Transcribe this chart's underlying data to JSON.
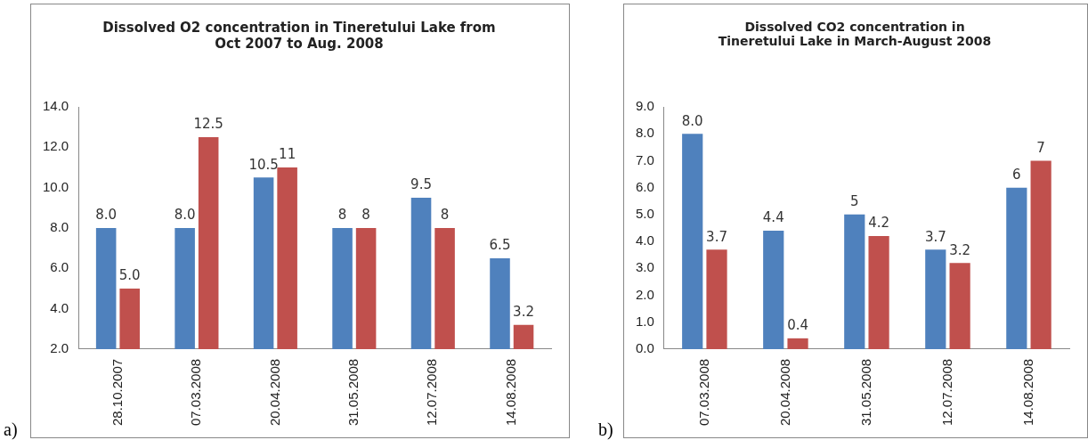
{
  "chart_data": [
    {
      "type": "bar",
      "title": "Dissolved  O2  concentration in Tineretului Lake from Oct 2007 to Aug. 2008",
      "categories": [
        "28.10.2007",
        "07.03.2008",
        "20.04.2008",
        "31.05.2008",
        "12.07.2008",
        "14.08.2008"
      ],
      "series": [
        {
          "color": "#4f81bd",
          "values": [
            8,
            8,
            10.5,
            8,
            9.5,
            6.5
          ],
          "value_labels": [
            "8.0",
            "8.0",
            "10.5",
            "8",
            "9.5",
            "6.5"
          ]
        },
        {
          "color": "#c0504d",
          "values": [
            5,
            12.5,
            11,
            8,
            8,
            3.2
          ],
          "value_labels": [
            "5.0",
            "12.5",
            "11",
            "8",
            "8",
            "3.2"
          ]
        }
      ],
      "ylim": [
        2,
        14
      ],
      "yticks": [
        {
          "value": 2,
          "label": "2.0"
        },
        {
          "value": 4,
          "label": "4.0"
        },
        {
          "value": 6,
          "label": "6.0"
        },
        {
          "value": 8,
          "label": "8.0"
        },
        {
          "value": 10,
          "label": "10.0"
        },
        {
          "value": 12,
          "label": "12.0"
        },
        {
          "value": 14,
          "label": "14.0"
        }
      ],
      "annotations": [
        "a)"
      ]
    },
    {
      "type": "bar",
      "title": "Dissolved CO2  concentration in Tineretului Lake in March-August 2008",
      "categories": [
        "07.03.2008",
        "20.04.2008",
        "31.05.2008",
        "12.07.2008",
        "14.08.2008"
      ],
      "series": [
        {
          "color": "#4f81bd",
          "values": [
            8,
            4.4,
            5,
            3.7,
            6
          ],
          "value_labels": [
            "8.0",
            "4.4",
            "5",
            "3.7",
            "6"
          ]
        },
        {
          "color": "#c0504d",
          "values": [
            3.7,
            0.4,
            4.2,
            3.2,
            7
          ],
          "value_labels": [
            "3.7",
            "0.4",
            "4.2",
            "3.2",
            "7"
          ]
        }
      ],
      "ylim": [
        0,
        9
      ],
      "yticks": [
        {
          "value": 0,
          "label": "0.0"
        },
        {
          "value": 1,
          "label": "1.0"
        },
        {
          "value": 2,
          "label": "2.0"
        },
        {
          "value": 3,
          "label": "3.0"
        },
        {
          "value": 4,
          "label": "4.0"
        },
        {
          "value": 5,
          "label": "5.0"
        },
        {
          "value": 6,
          "label": "6.0"
        },
        {
          "value": 7,
          "label": "7.0"
        },
        {
          "value": 8,
          "label": "8.0"
        },
        {
          "value": 9,
          "label": "9.0"
        }
      ],
      "annotations": [
        "b)"
      ]
    }
  ]
}
